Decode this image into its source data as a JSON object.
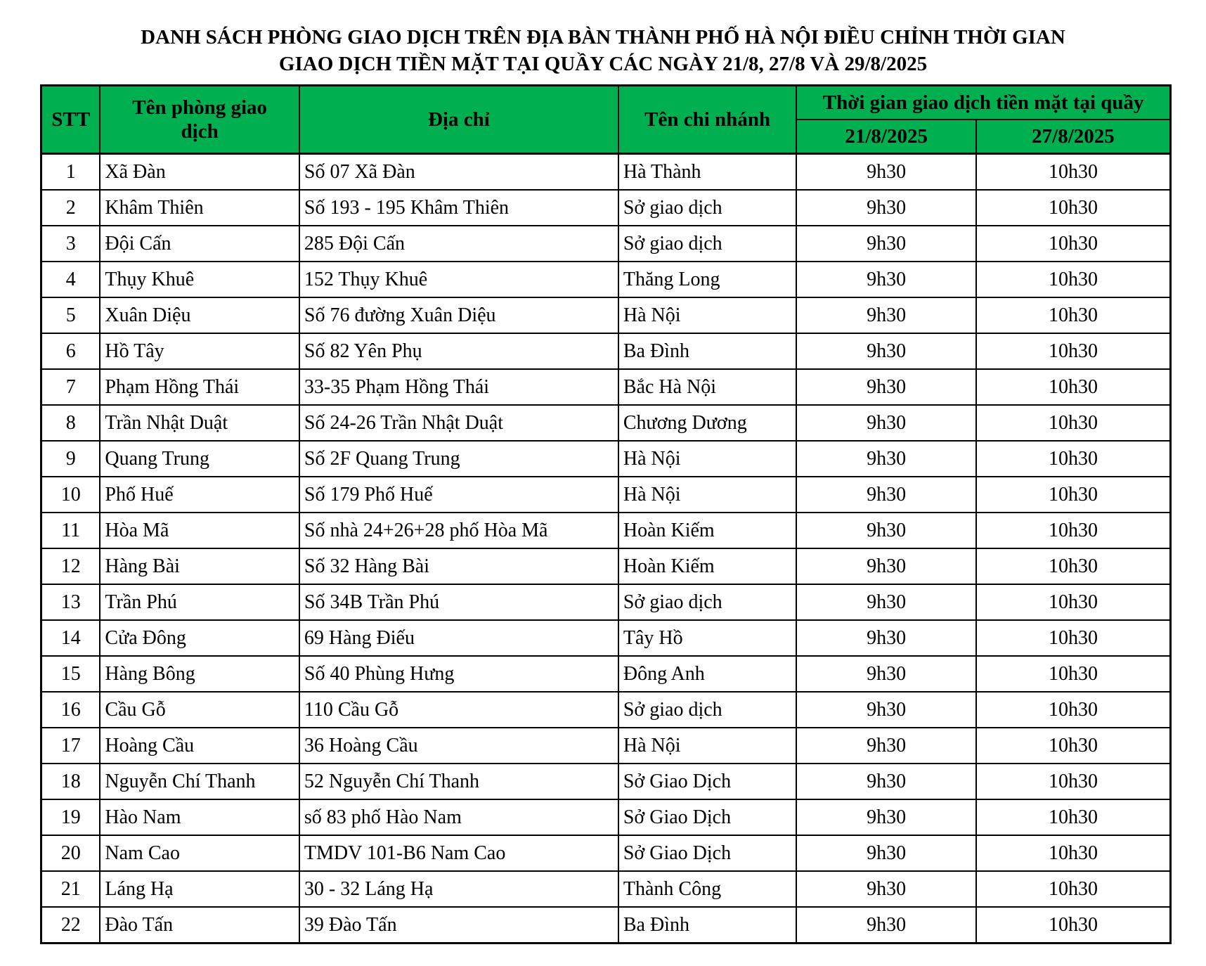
{
  "title": {
    "line1": "DANH SÁCH PHÒNG GIAO DỊCH TRÊN ĐỊA BÀN THÀNH PHỐ HÀ NỘI ĐIỀU CHỈNH THỜI GIAN",
    "line2": "GIAO DỊCH TIỀN MẶT TẠI QUẦY CÁC NGÀY 21/8, 27/8 VÀ 29/8/2025"
  },
  "header": {
    "stt": "STT",
    "name": "Tên phòng giao dịch",
    "address": "Địa chỉ",
    "branch": "Tên chi nhánh",
    "time_group": "Thời gian giao dịch tiền mặt tại quầy",
    "date1": "21/8/2025",
    "date2": "27/8/2025"
  },
  "colors": {
    "header_bg": "#00b050"
  },
  "rows": [
    [
      "1",
      "Xã Đàn",
      "Số 07 Xã Đàn",
      "Hà Thành",
      "9h30",
      "10h30"
    ],
    [
      "2",
      "Khâm Thiên",
      "Số 193 - 195 Khâm Thiên",
      "Sở giao dịch",
      "9h30",
      "10h30"
    ],
    [
      "3",
      "Đội Cấn",
      "285 Đội Cấn",
      "Sở giao dịch",
      "9h30",
      "10h30"
    ],
    [
      "4",
      "Thụy Khuê",
      "152 Thụy Khuê",
      "Thăng Long",
      "9h30",
      "10h30"
    ],
    [
      "5",
      "Xuân Diệu",
      "Số 76 đường Xuân Diệu",
      "Hà Nội",
      "9h30",
      "10h30"
    ],
    [
      "6",
      "Hồ Tây",
      "Số 82 Yên Phụ",
      "Ba Đình",
      "9h30",
      "10h30"
    ],
    [
      "7",
      "Phạm Hồng Thái",
      "33-35 Phạm Hồng Thái",
      "Bắc Hà Nội",
      "9h30",
      "10h30"
    ],
    [
      "8",
      "Trần Nhật Duật",
      "Số 24-26 Trần Nhật Duật",
      "Chương Dương",
      "9h30",
      "10h30"
    ],
    [
      "9",
      "Quang Trung",
      "Số 2F Quang Trung",
      "Hà Nội",
      "9h30",
      "10h30"
    ],
    [
      "10",
      "Phố Huế",
      "Số 179 Phố Huế",
      "Hà Nội",
      "9h30",
      "10h30"
    ],
    [
      "11",
      "Hòa Mã",
      "Số nhà 24+26+28 phố Hòa Mã",
      "Hoàn Kiếm",
      "9h30",
      "10h30"
    ],
    [
      "12",
      "Hàng Bài",
      "Số 32 Hàng Bài",
      "Hoàn Kiếm",
      "9h30",
      "10h30"
    ],
    [
      "13",
      "Trần Phú",
      "Số 34B Trần Phú",
      "Sở giao dịch",
      "9h30",
      "10h30"
    ],
    [
      "14",
      "Cửa Đông",
      "69 Hàng Điếu",
      "Tây Hồ",
      "9h30",
      "10h30"
    ],
    [
      "15",
      "Hàng Bông",
      "Số 40 Phùng Hưng",
      "Đông Anh",
      "9h30",
      "10h30"
    ],
    [
      "16",
      "Cầu Gỗ",
      "110 Cầu Gỗ",
      "Sở giao dịch",
      "9h30",
      "10h30"
    ],
    [
      "17",
      "Hoàng Cầu",
      "36 Hoàng Cầu",
      "Hà Nội",
      "9h30",
      "10h30"
    ],
    [
      "18",
      "Nguyễn Chí Thanh",
      "52 Nguyễn Chí Thanh",
      "Sở Giao Dịch",
      "9h30",
      "10h30"
    ],
    [
      "19",
      "Hào Nam",
      "số 83 phố Hào Nam",
      "Sở Giao Dịch",
      "9h30",
      "10h30"
    ],
    [
      "20",
      "Nam Cao",
      "TMDV 101-B6 Nam Cao",
      "Sở Giao Dịch",
      "9h30",
      "10h30"
    ],
    [
      "21",
      "Láng Hạ",
      "30 - 32 Láng Hạ",
      "Thành Công",
      "9h30",
      "10h30"
    ],
    [
      "22",
      "Đào Tấn",
      "39 Đào Tấn",
      "Ba Đình",
      "9h30",
      "10h30"
    ]
  ]
}
